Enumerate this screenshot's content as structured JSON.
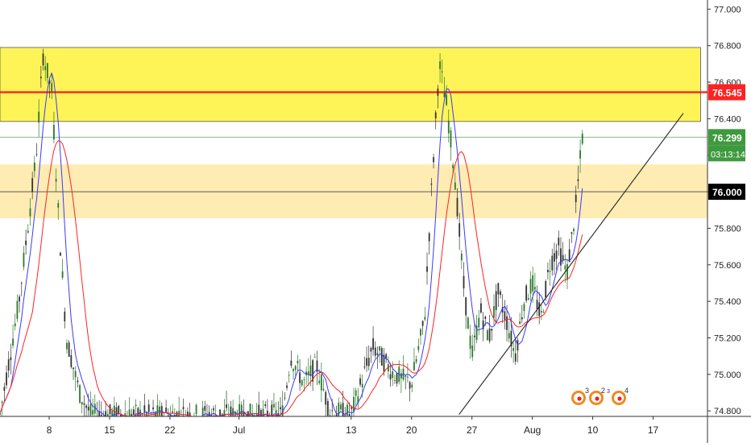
{
  "chart_data": {
    "type": "candlestick",
    "title": "",
    "xlabel": "",
    "ylabel": "",
    "ylim": [
      74.77,
      77.05
    ],
    "y_ticks": [
      "74.800",
      "75.000",
      "75.200",
      "75.400",
      "75.600",
      "75.800",
      "76.000",
      "76.200",
      "76.400",
      "76.600",
      "76.800",
      "77.000"
    ],
    "x_ticks": [
      {
        "label": "8",
        "day": 8
      },
      {
        "label": "15",
        "day": 15
      },
      {
        "label": "22",
        "day": 22
      },
      {
        "label": "Jul",
        "day": 30
      },
      {
        "label": "13",
        "day": 43
      },
      {
        "label": "20",
        "day": 50
      },
      {
        "label": "27",
        "day": 57
      },
      {
        "label": "Aug",
        "day": 64
      },
      {
        "label": "10",
        "day": 71
      },
      {
        "label": "17",
        "day": 78
      }
    ],
    "x_range_days": [
      2.3,
      84.3
    ],
    "zones": [
      {
        "name": "resistance-zone",
        "y_low": 76.385,
        "y_high": 76.79,
        "x_start_day": 2.3,
        "x_end_day": 83.5,
        "color": "#fff23a"
      },
      {
        "name": "support-zone",
        "y_low": 75.855,
        "y_high": 76.15,
        "x_start_day": 2.3,
        "x_end_day": 84.3,
        "color": "#fde59a"
      }
    ],
    "horizontal_lines": [
      {
        "name": "red-level",
        "y": 76.545,
        "color": "#ff1a1a",
        "label": "76.545"
      },
      {
        "name": "last-price-line",
        "y": 76.299,
        "color": "#74b374",
        "label": "76.299"
      },
      {
        "name": "round-level",
        "y": 76.0,
        "color": "#444444",
        "label": "76.000"
      }
    ],
    "trendline": {
      "from": {
        "day": 55.5,
        "y": 74.78
      },
      "to": {
        "day": 81.5,
        "y": 76.43
      },
      "color": "#222222"
    },
    "countdown": "03:13:14",
    "colors": {
      "up": "#2a7a2a",
      "down": "#333333",
      "ma_fast": "#3a3aff",
      "ma_slow": "#ff2222",
      "price_label": "#3f9a3f",
      "level_label": "#ff2222",
      "round_label": "#000000"
    },
    "ohlc_source": "generated",
    "series": [
      {
        "name": "",
        "type": "candles"
      },
      {
        "name": "",
        "type": "ma_fast"
      },
      {
        "name": "",
        "type": "ma_slow"
      }
    ],
    "logo_text": {
      "a": "3",
      "b": "2",
      "c": "3",
      "d": "4"
    }
  }
}
